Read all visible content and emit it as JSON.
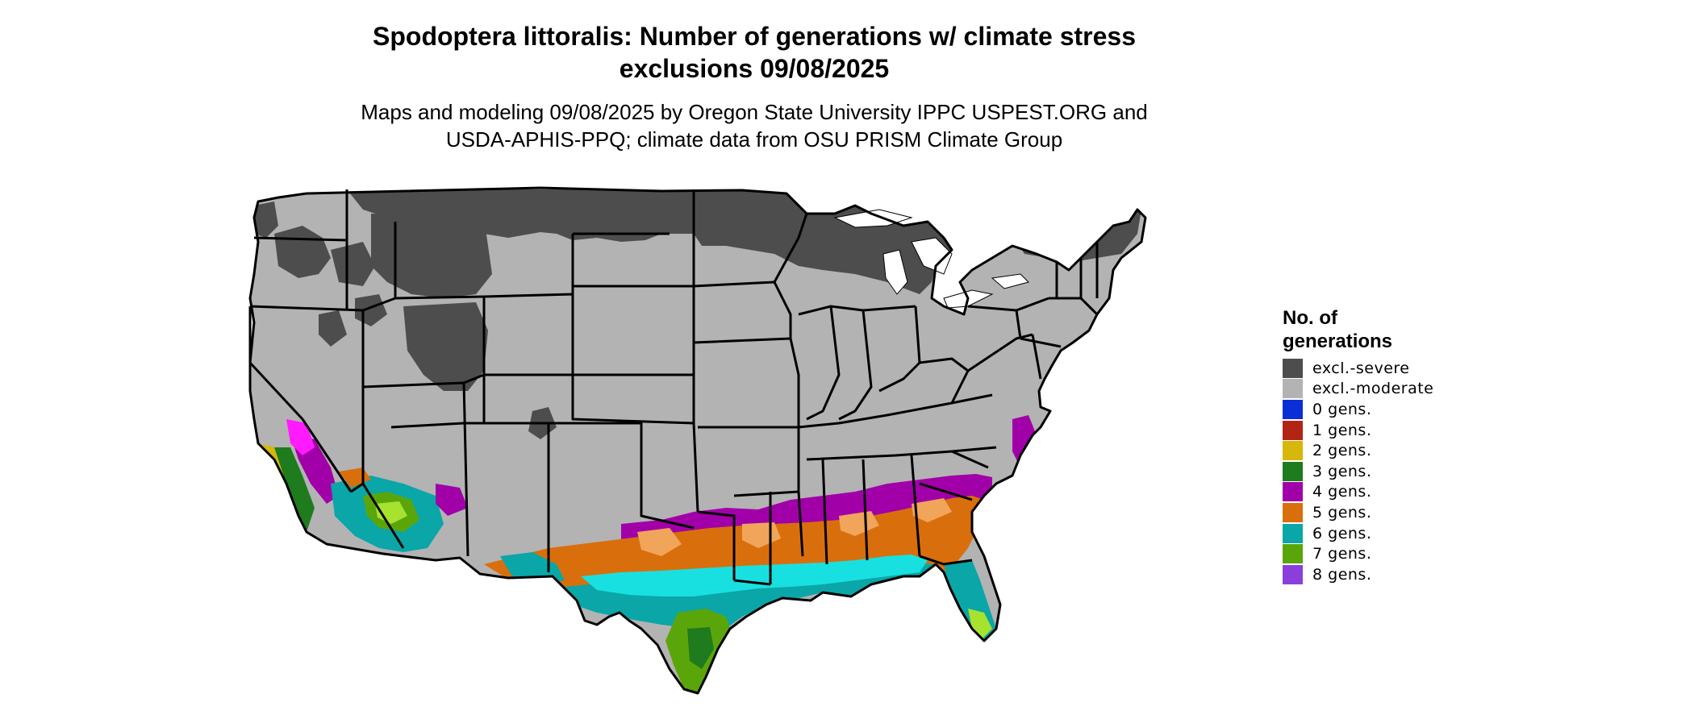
{
  "header": {
    "title_line1": "Spodoptera littoralis: Number of generations w/ climate stress",
    "title_line2": "exclusions 09/08/2025",
    "subtitle_line1": "Maps and modeling 09/08/2025 by Oregon State University IPPC USPEST.ORG and",
    "subtitle_line2": "USDA-APHIS-PPQ; climate data from OSU PRISM Climate Group"
  },
  "legend": {
    "title_line1": "No. of",
    "title_line2": "generations",
    "items": [
      {
        "label": "excl.-severe",
        "color": "#4d4d4d"
      },
      {
        "label": "excl.-moderate",
        "color": "#b3b3b3"
      },
      {
        "label": "0 gens.",
        "color": "#0a2fd6"
      },
      {
        "label": "1 gens.",
        "color": "#b22514"
      },
      {
        "label": "2 gens.",
        "color": "#d6b70a"
      },
      {
        "label": "3 gens.",
        "color": "#1e7b1e"
      },
      {
        "label": "4 gens.",
        "color": "#a100a8"
      },
      {
        "label": "5 gens.",
        "color": "#d96f0c"
      },
      {
        "label": "6 gens.",
        "color": "#0aa6a8"
      },
      {
        "label": "7 gens.",
        "color": "#5aa60a"
      },
      {
        "label": "8 gens.",
        "color": "#8a3fdd"
      }
    ]
  },
  "map": {
    "region": "Continental United States",
    "colors": {
      "severe": "#4d4d4d",
      "moderate": "#b3b3b3",
      "gen2": "#d6b70a",
      "gen3": "#1e7b1e",
      "gen4": "#a100a8",
      "gen5": "#d96f0c",
      "gen5_light": "#f0a55a",
      "gen6": "#0aa6a8",
      "gen6_bright": "#19e0e0",
      "gen7": "#5aa60a",
      "gen7_light": "#a6e22e",
      "gen4_bright": "#ff1aff",
      "border": "#000000",
      "lake": "#ffffff"
    }
  }
}
